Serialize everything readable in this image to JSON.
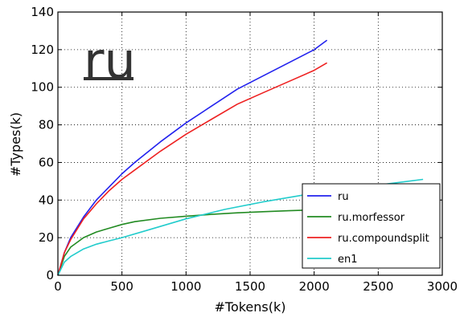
{
  "chart_data": {
    "type": "line",
    "title": "",
    "xlabel": "#Tokens(k)",
    "ylabel": "#Types(k)",
    "xlim": [
      0,
      3000
    ],
    "ylim": [
      0,
      140
    ],
    "xticks": [
      "0",
      "500",
      "1000",
      "1500",
      "2000",
      "2500",
      "3000"
    ],
    "yticks": [
      "0",
      "20",
      "40",
      "60",
      "80",
      "100",
      "120",
      "140"
    ],
    "grid": true,
    "legend_position": "bottom-right",
    "annotation": "ru",
    "series": [
      {
        "name": "ru",
        "color": "#2222ee",
        "x": [
          0,
          50,
          100,
          200,
          300,
          400,
          500,
          600,
          800,
          1000,
          1200,
          1400,
          1600,
          1800,
          2000,
          2100
        ],
        "y": [
          0,
          12,
          20,
          31,
          40,
          47,
          54,
          60,
          71,
          81,
          90,
          99,
          106,
          113,
          120,
          125
        ]
      },
      {
        "name": "ru.morfessor",
        "color": "#228B22",
        "x": [
          0,
          50,
          100,
          200,
          300,
          400,
          500,
          600,
          800,
          1000,
          1200,
          1400,
          1600,
          1800,
          2000,
          2100
        ],
        "y": [
          0,
          10,
          15,
          20,
          23,
          25,
          27,
          28.5,
          30.3,
          31.4,
          32.4,
          33.2,
          33.8,
          34.3,
          34.8,
          35
        ]
      },
      {
        "name": "ru.compoundsplit",
        "color": "#ee2222",
        "x": [
          0,
          50,
          100,
          200,
          300,
          400,
          500,
          600,
          800,
          1000,
          1200,
          1400,
          1600,
          1800,
          2000,
          2100
        ],
        "y": [
          0,
          12,
          19,
          30,
          38,
          45,
          51,
          56,
          66,
          75,
          83,
          91,
          97,
          103,
          109,
          113
        ]
      },
      {
        "name": "en1",
        "color": "#22cccc",
        "x": [
          0,
          50,
          100,
          200,
          300,
          400,
          500,
          700,
          1000,
          1300,
          1600,
          1900,
          2200,
          2500,
          2850
        ],
        "y": [
          0,
          7,
          10,
          14,
          16.5,
          18.3,
          20,
          24,
          30,
          35,
          39,
          42.5,
          45.5,
          48,
          51
        ]
      }
    ]
  }
}
